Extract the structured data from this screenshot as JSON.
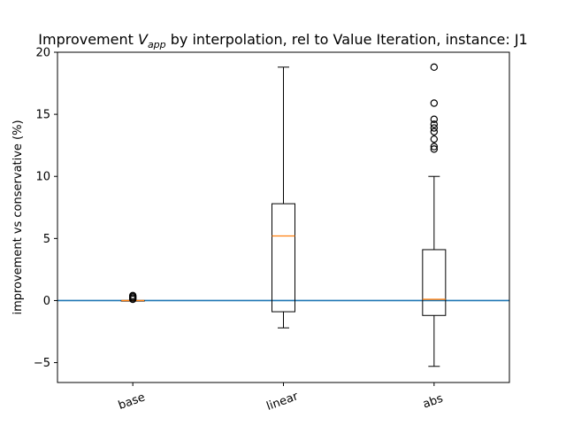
{
  "chart_data": {
    "type": "box",
    "title": "Improvement V_app by interpolation, rel to Value Iteration, instance: J1",
    "title_parts": {
      "pre": "Improvement ",
      "symbol": "V",
      "subscript": "app",
      "post": " by interpolation, rel to Value Iteration, instance: J1"
    },
    "xlabel": "",
    "ylabel": "improvement vs conservative (%)",
    "ylim": [
      -6.6,
      20.0
    ],
    "yticks": [
      -5,
      0,
      5,
      10,
      15,
      20
    ],
    "ytick_labels": [
      "−5",
      "0",
      "5",
      "10",
      "15",
      "20"
    ],
    "categories": [
      "base",
      "linear",
      "abs"
    ],
    "boxes": [
      {
        "name": "base",
        "whisker_low": 0.0,
        "q1": 0.0,
        "median": 0.0,
        "q3": 0.0,
        "whisker_high": 0.0,
        "outliers": [
          0.1,
          0.2,
          0.3,
          0.4
        ]
      },
      {
        "name": "linear",
        "whisker_low": -2.2,
        "q1": -0.9,
        "median": 5.2,
        "q3": 7.8,
        "whisker_high": 18.8,
        "outliers": []
      },
      {
        "name": "abs",
        "whisker_low": -5.3,
        "q1": -1.2,
        "median": 0.1,
        "q3": 4.1,
        "whisker_high": 10.0,
        "outliers": [
          12.2,
          12.4,
          13.0,
          13.6,
          13.9,
          14.2,
          14.6,
          15.9,
          18.8
        ]
      }
    ],
    "reference_line": {
      "y": 0,
      "color": "#1f77b4"
    },
    "colors": {
      "box": "#000000",
      "median": "#ff7f0e",
      "reference": "#1f77b4"
    },
    "grid": false,
    "legend": "none"
  }
}
